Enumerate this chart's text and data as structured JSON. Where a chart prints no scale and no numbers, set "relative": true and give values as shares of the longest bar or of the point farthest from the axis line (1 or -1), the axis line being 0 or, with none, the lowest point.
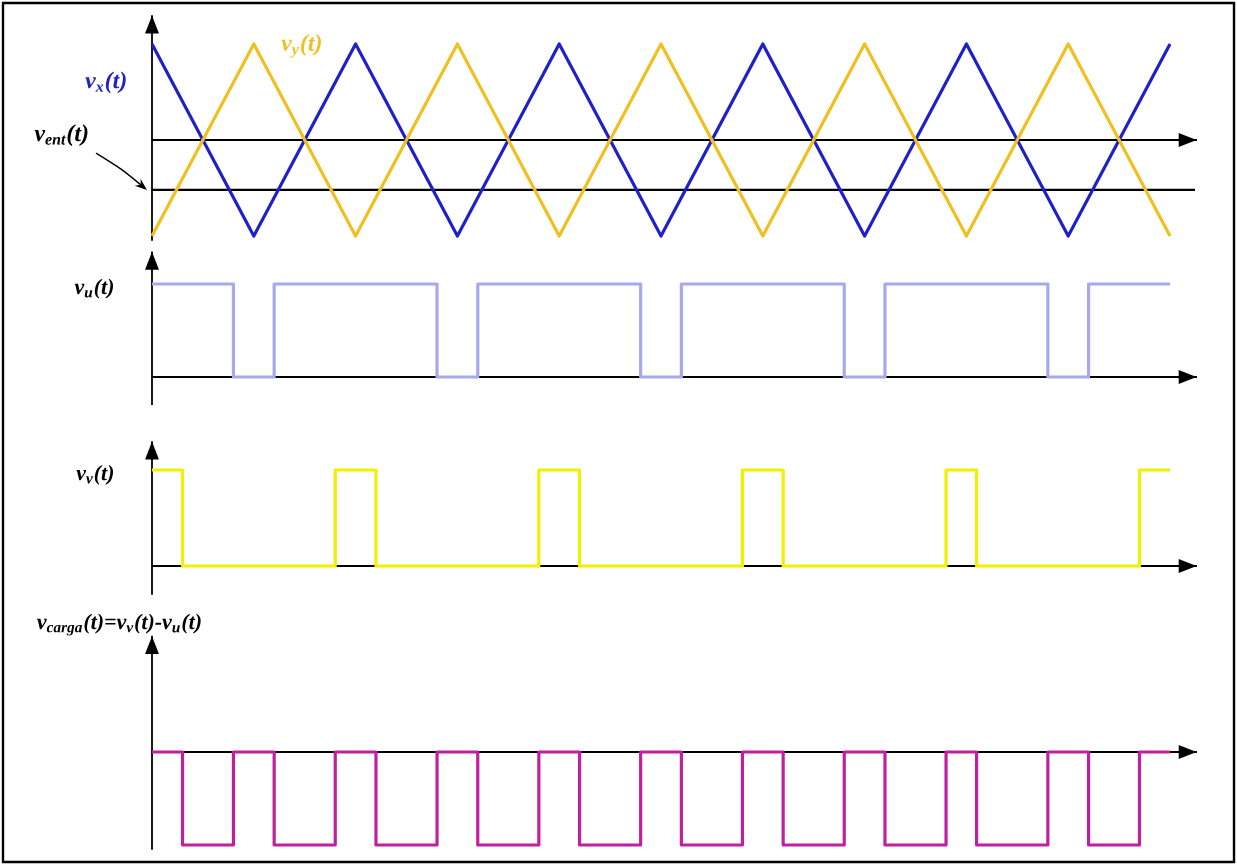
{
  "chart_data": [
    {
      "type": "line",
      "relative": true,
      "tick_labels": false,
      "categories": [
        null,
        null,
        null,
        null,
        null,
        null,
        null,
        null,
        null,
        null,
        null
      ],
      "ref_lines": [
        {
          "axis": "y",
          "value": -0.52,
          "label": "v$_{ent}$(t)",
          "color": "#000000"
        }
      ],
      "series": [
        {
          "name": "v$_{x}$(t)",
          "color": "#2020c8",
          "values": [
            1,
            -1,
            1,
            -1,
            1,
            -1,
            1,
            -1,
            1,
            -1,
            1
          ]
        },
        {
          "name": "v$_{y}$(t)",
          "color": "#f0c020",
          "values": [
            -1,
            1,
            -1,
            1,
            -1,
            1,
            -1,
            1,
            -1,
            1,
            -1
          ]
        }
      ]
    },
    {
      "type": "step",
      "relative": true,
      "tick_labels": false,
      "ylabel": "v$_{u}$(t)",
      "categories": [
        null,
        null,
        null,
        null,
        null,
        null,
        null,
        null,
        null,
        null,
        null,
        null,
        null,
        null,
        null,
        null,
        null,
        null,
        null,
        null,
        null,
        null,
        null,
        null,
        null,
        null,
        null,
        null,
        null,
        null,
        null,
        null,
        null,
        null,
        null,
        null,
        null,
        null,
        null,
        null,
        null,
        null,
        null,
        null,
        null,
        null,
        null,
        null,
        null,
        null,
        null,
        null,
        null,
        null,
        null,
        null,
        null,
        null,
        null,
        null,
        null,
        null,
        null,
        null,
        null,
        null,
        null,
        null,
        null,
        null,
        null,
        null,
        null,
        null,
        null,
        null,
        null,
        null,
        null,
        null,
        null,
        null,
        null,
        null,
        null,
        null,
        null,
        null,
        null,
        null,
        null,
        null,
        null,
        null,
        null,
        null,
        null,
        null,
        null,
        null,
        null
      ],
      "series": [
        {
          "color": "#a8a8f0",
          "values": [
            1,
            1,
            1,
            1,
            1,
            1,
            1,
            1,
            0,
            0,
            0,
            0,
            1,
            1,
            1,
            1,
            1,
            1,
            1,
            1,
            1,
            1,
            1,
            1,
            1,
            1,
            1,
            1,
            0,
            0,
            0,
            0,
            1,
            1,
            1,
            1,
            1,
            1,
            1,
            1,
            1,
            1,
            1,
            1,
            1,
            1,
            1,
            1,
            0,
            0,
            0,
            0,
            1,
            1,
            1,
            1,
            1,
            1,
            1,
            1,
            1,
            1,
            1,
            1,
            1,
            1,
            1,
            1,
            0,
            0,
            0,
            0,
            1,
            1,
            1,
            1,
            1,
            1,
            1,
            1,
            1,
            1,
            1,
            1,
            1,
            1,
            1,
            1,
            0,
            0,
            0,
            0,
            1,
            1,
            1,
            1,
            1,
            1,
            1,
            1,
            1
          ]
        }
      ]
    },
    {
      "type": "step",
      "relative": true,
      "tick_labels": false,
      "ylabel": "v$_{v}$(t)",
      "categories": [
        null,
        null,
        null,
        null,
        null,
        null,
        null,
        null,
        null,
        null,
        null,
        null,
        null,
        null,
        null,
        null,
        null,
        null,
        null,
        null,
        null,
        null,
        null,
        null,
        null,
        null,
        null,
        null,
        null,
        null,
        null,
        null,
        null,
        null,
        null,
        null,
        null,
        null,
        null,
        null,
        null,
        null,
        null,
        null,
        null,
        null,
        null,
        null,
        null,
        null,
        null,
        null,
        null,
        null,
        null,
        null,
        null,
        null,
        null,
        null,
        null,
        null,
        null,
        null,
        null,
        null,
        null,
        null,
        null,
        null,
        null,
        null,
        null,
        null,
        null,
        null,
        null,
        null,
        null,
        null,
        null,
        null,
        null,
        null,
        null,
        null,
        null,
        null,
        null,
        null,
        null,
        null,
        null,
        null,
        null,
        null,
        null,
        null,
        null,
        null,
        null
      ],
      "series": [
        {
          "color": "#f0f000",
          "values": [
            1,
            1,
            1,
            0,
            0,
            0,
            0,
            0,
            0,
            0,
            0,
            0,
            0,
            0,
            0,
            0,
            0,
            0,
            1,
            1,
            1,
            1,
            0,
            0,
            0,
            0,
            0,
            0,
            0,
            0,
            0,
            0,
            0,
            0,
            0,
            0,
            0,
            0,
            1,
            1,
            1,
            1,
            0,
            0,
            0,
            0,
            0,
            0,
            0,
            0,
            0,
            0,
            0,
            0,
            0,
            0,
            0,
            0,
            1,
            1,
            1,
            1,
            0,
            0,
            0,
            0,
            0,
            0,
            0,
            0,
            0,
            0,
            0,
            0,
            0,
            0,
            0,
            0,
            1,
            1,
            1,
            0,
            0,
            0,
            0,
            0,
            0,
            0,
            0,
            0,
            0,
            0,
            0,
            0,
            0,
            0,
            0,
            1,
            1,
            1,
            1
          ]
        }
      ]
    },
    {
      "type": "step",
      "relative": true,
      "tick_labels": false,
      "ylabel": "v$_{carga}$(t)=v$_{v}$(t)-v$_{u}$(t)",
      "categories": [
        null,
        null,
        null,
        null,
        null,
        null,
        null,
        null,
        null,
        null,
        null,
        null,
        null,
        null,
        null,
        null,
        null,
        null,
        null,
        null,
        null,
        null,
        null,
        null,
        null,
        null,
        null,
        null,
        null,
        null,
        null,
        null,
        null,
        null,
        null,
        null,
        null,
        null,
        null,
        null,
        null,
        null,
        null,
        null,
        null,
        null,
        null,
        null,
        null,
        null,
        null,
        null,
        null,
        null,
        null,
        null,
        null,
        null,
        null,
        null,
        null,
        null,
        null,
        null,
        null,
        null,
        null,
        null,
        null,
        null,
        null,
        null,
        null,
        null,
        null,
        null,
        null,
        null,
        null,
        null,
        null,
        null,
        null,
        null,
        null,
        null,
        null,
        null,
        null,
        null,
        null,
        null,
        null,
        null,
        null,
        null,
        null,
        null,
        null,
        null,
        null
      ],
      "series": [
        {
          "color": "#c020a0",
          "values": [
            0,
            0,
            0,
            -1,
            -1,
            -1,
            -1,
            -1,
            0,
            0,
            0,
            0,
            -1,
            -1,
            -1,
            -1,
            -1,
            -1,
            0,
            0,
            0,
            0,
            -1,
            -1,
            -1,
            -1,
            -1,
            -1,
            0,
            0,
            0,
            0,
            -1,
            -1,
            -1,
            -1,
            -1,
            -1,
            0,
            0,
            0,
            0,
            -1,
            -1,
            -1,
            -1,
            -1,
            -1,
            0,
            0,
            0,
            0,
            -1,
            -1,
            -1,
            -1,
            -1,
            -1,
            0,
            0,
            0,
            0,
            -1,
            -1,
            -1,
            -1,
            -1,
            -1,
            0,
            0,
            0,
            0,
            -1,
            -1,
            -1,
            -1,
            -1,
            -1,
            0,
            0,
            0,
            -1,
            -1,
            -1,
            -1,
            -1,
            -1,
            -1,
            0,
            0,
            0,
            0,
            -1,
            -1,
            -1,
            -1,
            -1,
            0,
            0,
            0,
            0
          ]
        }
      ]
    }
  ]
}
